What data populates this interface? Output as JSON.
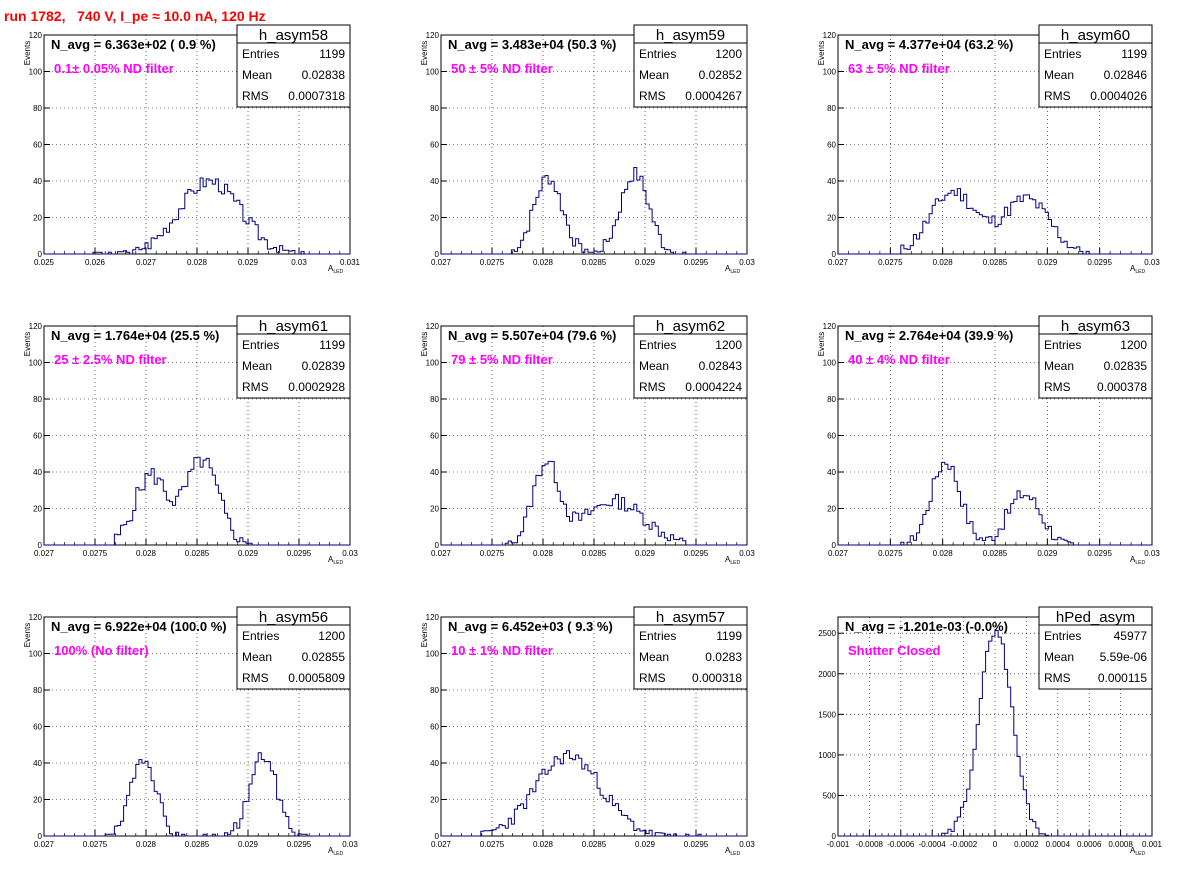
{
  "run_title": "run 1782,   740 V, I_pe ≈ 10.0 nA, 120 Hz",
  "stat_labels": {
    "entries": "Entries",
    "mean": "Mean",
    "rms": "RMS"
  },
  "chart_data": [
    {
      "type": "bar",
      "name": "h_asym58",
      "title": "N_avg = 6.363e+02 ( 0.9 %)",
      "annotation": "0.1± 0.05% ND filter",
      "stats": {
        "entries": "1199",
        "mean": "0.02838",
        "rms": "0.0007318"
      },
      "xlabel": "A",
      "xlabel_sub": "LED",
      "ylabel": "Events",
      "xlim": [
        0.025,
        0.031
      ],
      "ylim": [
        0,
        120
      ],
      "xticks": [
        "0.025",
        "0.026",
        "0.027",
        "0.028",
        "0.029",
        "0.03",
        "0.031"
      ],
      "yticks": [
        "0",
        "20",
        "40",
        "60",
        "80",
        "100",
        "120"
      ],
      "curve": {
        "kind": "bimodal",
        "peaks": [
          [
            0.02825,
            0.0006,
            40
          ]
        ],
        "lo": 0.0259,
        "hi": 0.0304,
        "noise": 4,
        "seed": 3
      }
    },
    {
      "type": "bar",
      "name": "h_asym59",
      "title": "N_avg = 3.483e+04 (50.3 %)",
      "annotation": "50 ± 5% ND filter",
      "stats": {
        "entries": "1200",
        "mean": "0.02852",
        "rms": "0.0004267"
      },
      "xlabel": "A",
      "xlabel_sub": "LED",
      "ylabel": "Events",
      "xlim": [
        0.027,
        0.03
      ],
      "ylim": [
        0,
        120
      ],
      "xticks": [
        "0.027",
        "0.0275",
        "0.028",
        "0.0285",
        "0.029",
        "0.0295",
        "0.03"
      ],
      "yticks": [
        "0",
        "20",
        "40",
        "60",
        "80",
        "100",
        "120"
      ],
      "curve": {
        "kind": "bimodal",
        "peaks": [
          [
            0.02805,
            0.00014,
            42
          ],
          [
            0.0289,
            0.00014,
            44
          ]
        ],
        "lo": 0.0277,
        "hi": 0.0294,
        "noise": 4,
        "seed": 7
      }
    },
    {
      "type": "bar",
      "name": "h_asym60",
      "title": "N_avg = 4.377e+04 (63.2 %)",
      "annotation": "63 ± 5% ND filter",
      "stats": {
        "entries": "1199",
        "mean": "0.02846",
        "rms": "0.0004026"
      },
      "xlabel": "A",
      "xlabel_sub": "LED",
      "ylabel": "Events",
      "xlim": [
        0.027,
        0.03
      ],
      "ylim": [
        0,
        120
      ],
      "xticks": [
        "0.027",
        "0.0275",
        "0.028",
        "0.0285",
        "0.029",
        "0.0295",
        "0.03"
      ],
      "yticks": [
        "0",
        "20",
        "40",
        "60",
        "80",
        "100",
        "120"
      ],
      "curve": {
        "kind": "bimodal",
        "peaks": [
          [
            0.0281,
            0.00022,
            34
          ],
          [
            0.0288,
            0.00022,
            30
          ]
        ],
        "lo": 0.0276,
        "hi": 0.0294,
        "noise": 4,
        "seed": 11
      }
    },
    {
      "type": "bar",
      "name": "h_asym61",
      "title": "N_avg = 1.764e+04 (25.5 %)",
      "annotation": "25 ± 2.5% ND filter",
      "stats": {
        "entries": "1199",
        "mean": "0.02839",
        "rms": "0.0002928"
      },
      "xlabel": "A",
      "xlabel_sub": "LED",
      "ylabel": "Events",
      "xlim": [
        0.027,
        0.03
      ],
      "ylim": [
        0,
        120
      ],
      "xticks": [
        "0.027",
        "0.0275",
        "0.028",
        "0.0285",
        "0.029",
        "0.0295",
        "0.03"
      ],
      "yticks": [
        "0",
        "20",
        "40",
        "60",
        "80",
        "100",
        "120"
      ],
      "curve": {
        "kind": "bimodal",
        "peaks": [
          [
            0.02805,
            0.00016,
            38
          ],
          [
            0.02855,
            0.00016,
            46
          ]
        ],
        "lo": 0.0277,
        "hi": 0.0292,
        "noise": 5,
        "seed": 5
      }
    },
    {
      "type": "bar",
      "name": "h_asym62",
      "title": "N_avg = 5.507e+04 (79.6 %)",
      "annotation": "79 ± 5% ND filter",
      "stats": {
        "entries": "1200",
        "mean": "0.02843",
        "rms": "0.0004224"
      },
      "xlabel": "A",
      "xlabel_sub": "LED",
      "ylabel": "Events",
      "xlim": [
        0.027,
        0.03
      ],
      "ylim": [
        0,
        120
      ],
      "xticks": [
        "0.027",
        "0.0275",
        "0.028",
        "0.0285",
        "0.029",
        "0.0295",
        "0.03"
      ],
      "yticks": [
        "0",
        "20",
        "40",
        "60",
        "80",
        "100",
        "120"
      ],
      "curve": {
        "kind": "bimodal",
        "peaks": [
          [
            0.02803,
            0.00013,
            44
          ],
          [
            0.0287,
            0.0003,
            24
          ]
        ],
        "lo": 0.0276,
        "hi": 0.0294,
        "noise": 4,
        "seed": 13
      }
    },
    {
      "type": "bar",
      "name": "h_asym63",
      "title": "N_avg = 2.764e+04 (39.9 %)",
      "annotation": "40 ± 4% ND filter",
      "stats": {
        "entries": "1200",
        "mean": "0.02835",
        "rms": "0.000378"
      },
      "xlabel": "A",
      "xlabel_sub": "LED",
      "ylabel": "Events",
      "xlim": [
        0.027,
        0.03
      ],
      "ylim": [
        0,
        120
      ],
      "xticks": [
        "0.027",
        "0.0275",
        "0.028",
        "0.0285",
        "0.029",
        "0.0295",
        "0.03"
      ],
      "yticks": [
        "0",
        "20",
        "40",
        "60",
        "80",
        "100",
        "120"
      ],
      "curve": {
        "kind": "bimodal",
        "peaks": [
          [
            0.02803,
            0.00014,
            46
          ],
          [
            0.02878,
            0.00016,
            28
          ]
        ],
        "lo": 0.0276,
        "hi": 0.0294,
        "noise": 4,
        "seed": 17
      }
    },
    {
      "type": "bar",
      "name": "h_asym56",
      "title": "N_avg = 6.922e+04 (100.0 %)",
      "annotation": "100% (No filter)",
      "stats": {
        "entries": "1200",
        "mean": "0.02855",
        "rms": "0.0005809"
      },
      "xlabel": "A",
      "xlabel_sub": "LED",
      "ylabel": "Events",
      "xlim": [
        0.027,
        0.03
      ],
      "ylim": [
        0,
        120
      ],
      "xticks": [
        "0.027",
        "0.0275",
        "0.028",
        "0.0285",
        "0.029",
        "0.0295",
        "0.03"
      ],
      "yticks": [
        "0",
        "20",
        "40",
        "60",
        "80",
        "100",
        "120"
      ],
      "curve": {
        "kind": "bimodal",
        "peaks": [
          [
            0.02798,
            0.00012,
            44
          ],
          [
            0.02915,
            0.00013,
            44
          ]
        ],
        "lo": 0.0275,
        "hi": 0.0296,
        "noise": 4,
        "seed": 19
      }
    },
    {
      "type": "bar",
      "name": "h_asym57",
      "title": "N_avg = 6.452e+03 ( 9.3 %)",
      "annotation": "10 ± 1% ND filter",
      "stats": {
        "entries": "1199",
        "mean": "0.0283",
        "rms": "0.000318"
      },
      "xlabel": "A",
      "xlabel_sub": "LED",
      "ylabel": "Events",
      "xlim": [
        0.027,
        0.03
      ],
      "ylim": [
        0,
        120
      ],
      "xticks": [
        "0.027",
        "0.0275",
        "0.028",
        "0.0285",
        "0.029",
        "0.0295",
        "0.03"
      ],
      "yticks": [
        "0",
        "20",
        "40",
        "60",
        "80",
        "100",
        "120"
      ],
      "curve": {
        "kind": "bimodal",
        "peaks": [
          [
            0.02825,
            0.00032,
            44
          ]
        ],
        "lo": 0.0274,
        "hi": 0.0296,
        "noise": 4,
        "seed": 23
      }
    },
    {
      "type": "bar",
      "name": "hPed_asym",
      "title": "N_avg = -1.201e-03 (-0.0%)",
      "annotation": "Shutter Closed",
      "stats": {
        "entries": "45977",
        "mean": "5.59e-06",
        "rms": "0.000115"
      },
      "xlabel": "A",
      "xlabel_sub": "LED",
      "ylabel": "",
      "xlim": [
        -0.001,
        0.001
      ],
      "ylim": [
        0,
        2700
      ],
      "xticks": [
        "-0.001",
        "-0.0008",
        "-0.0006",
        "-0.0004",
        "-0.0002",
        "0",
        "0.0002",
        "0.0004",
        "0.0006",
        "0.0008",
        "0.001"
      ],
      "yticks": [
        "0",
        "500",
        "1000",
        "1500",
        "2000",
        "2500"
      ],
      "curve": {
        "kind": "ped",
        "peaks": [
          [
            5e-06,
            0.000105,
            2550
          ]
        ],
        "lo": -0.00034,
        "hi": 0.00035,
        "noise": 60,
        "seed": 29
      }
    }
  ]
}
